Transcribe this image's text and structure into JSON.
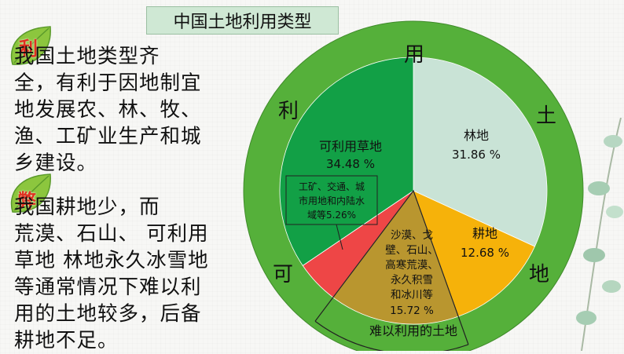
{
  "title": "中国土地利用类型",
  "pro": {
    "badge": "利",
    "lines": [
      "   我国土地类型齐",
      "全，有利于因地制宜",
      "地发展农、林、牧、",
      "渔、工矿业生产和城",
      "乡建设。"
    ]
  },
  "con": {
    "badge": "弊",
    "lines": [
      "   我国耕地少，而",
      "荒漠、石山、 可利用",
      "草地 林地永久冰雪地",
      "等通常情况下难以利",
      "用的土地较多，后备",
      "耕地不足。"
    ]
  },
  "ring_chars": [
    "用",
    "土",
    "地",
    "利",
    "可"
  ],
  "hard_to_use_label": "难以利用的土地",
  "colors": {
    "ring": "#55b03a",
    "forest": "#c9e3d6",
    "farmland": "#f6b20a",
    "hard": "#b9962f",
    "urban": "#ee4646",
    "grass": "#12a046",
    "title_bg": "#cfe8d4",
    "badge_red": "#e03020"
  },
  "chart_data": {
    "type": "pie",
    "title": "中国土地利用类型",
    "slices": [
      {
        "name": "林地",
        "value": 31.86,
        "label": "31.86 %"
      },
      {
        "name": "耕地",
        "value": 12.68,
        "label": "12.68 %"
      },
      {
        "name": "沙漠、戈壁、石山、高寒荒漠、永久积雪和冰川等",
        "value": 15.72,
        "label": "15.72 %"
      },
      {
        "name": "工矿、交通、城市用地和内陆水域等",
        "value": 5.26,
        "label": "5.26 %"
      },
      {
        "name": "可利用草地",
        "value": 34.48,
        "label": "34.48 %"
      }
    ]
  }
}
